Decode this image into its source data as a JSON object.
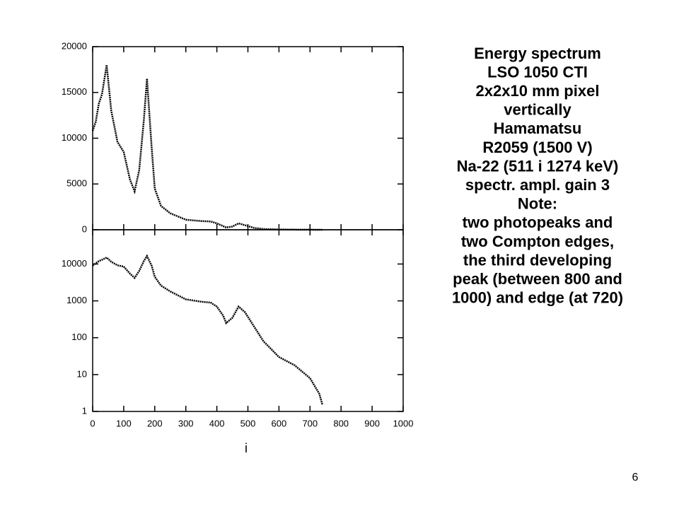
{
  "chart_data": [
    {
      "type": "line",
      "log_scale": false,
      "x": [
        0,
        10,
        20,
        30,
        45,
        60,
        80,
        100,
        120,
        135,
        150,
        165,
        175,
        190,
        200,
        220,
        250,
        300,
        350,
        380,
        400,
        420,
        430,
        450,
        470,
        490,
        520,
        550,
        600,
        650,
        700,
        730,
        740
      ],
      "series": [
        {
          "color": "#000000",
          "values": [
            10800,
            11800,
            13800,
            14800,
            18000,
            13000,
            9600,
            8500,
            5500,
            4200,
            6500,
            12000,
            16500,
            9000,
            4500,
            2600,
            1800,
            1100,
            950,
            900,
            700,
            400,
            250,
            350,
            700,
            500,
            200,
            80,
            30,
            18,
            8,
            3,
            1.5
          ]
        }
      ],
      "xlim": [
        0,
        1000
      ],
      "xticks": [
        0,
        100,
        200,
        300,
        400,
        500,
        600,
        700,
        800,
        900,
        1000
      ],
      "ylim": [
        0,
        20000
      ],
      "yticks": [
        0,
        5000,
        10000,
        15000,
        20000
      ]
    },
    {
      "type": "line",
      "log_scale": true,
      "x_label": "i",
      "x": [
        0,
        10,
        20,
        30,
        45,
        60,
        80,
        100,
        120,
        135,
        150,
        165,
        175,
        190,
        200,
        220,
        250,
        300,
        350,
        380,
        400,
        420,
        430,
        450,
        470,
        490,
        520,
        550,
        600,
        650,
        700,
        730,
        740
      ],
      "series": [
        {
          "color": "#000000",
          "values": [
            9000,
            10500,
            12000,
            13000,
            15000,
            11500,
            9200,
            8500,
            5500,
            4200,
            6500,
            12000,
            16500,
            9000,
            4500,
            2600,
            1800,
            1100,
            950,
            900,
            700,
            400,
            250,
            350,
            700,
            500,
            200,
            80,
            30,
            18,
            8,
            3,
            1.5
          ]
        }
      ],
      "xlim": [
        0,
        1000
      ],
      "xticks": [
        0,
        100,
        200,
        300,
        400,
        500,
        600,
        700,
        800,
        900,
        1000
      ],
      "ylim": [
        1,
        85000
      ],
      "yticks": [
        1,
        10,
        100,
        1000,
        10000
      ]
    }
  ],
  "text_block": {
    "lines": [
      "Energy spectrum",
      "LSO 1050 CTI",
      "2x2x10 mm pixel",
      "vertically",
      "Hamamatsu",
      "R2059 (1500 V)",
      "Na-22 (511 i 1274 keV)",
      "spectr. ampl. gain 3",
      "Note:",
      " two photopeaks and",
      "two Compton edges,",
      "the third developing",
      "peak (between 800 and",
      "1000) and edge (at 720)"
    ]
  },
  "page_number": "6"
}
